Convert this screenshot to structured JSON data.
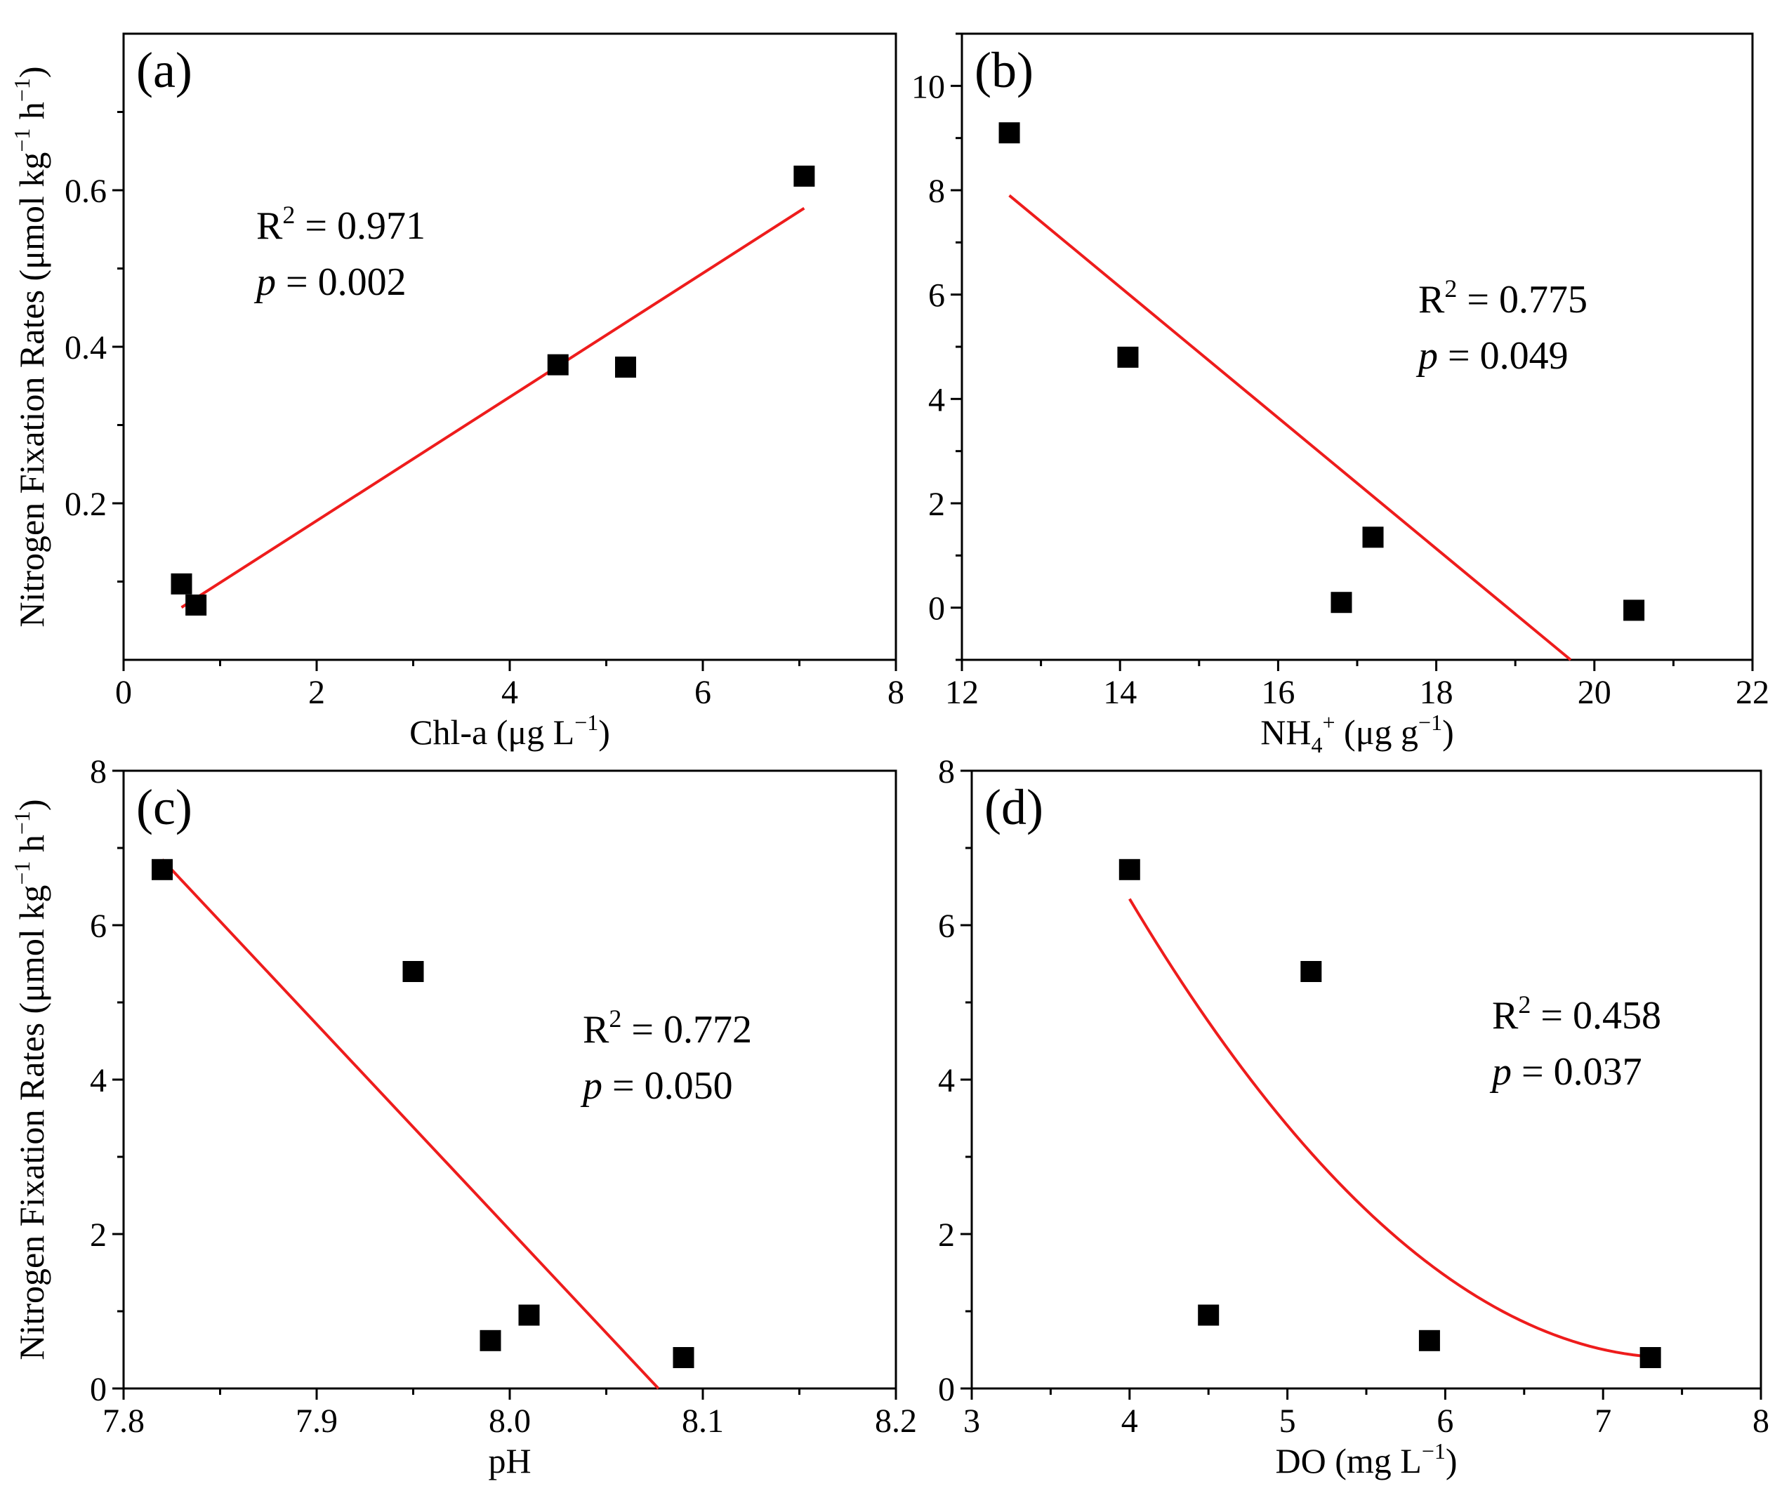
{
  "figure": {
    "y_axis_label": "Nitrogen Fixation Rates (μmol kg⁻¹ h⁻¹)",
    "marker_color": "#000000",
    "fit_color": "#ee1c1c"
  },
  "chart_data": [
    {
      "panel": "(a)",
      "type": "scatter",
      "xlabel": "Chl-a (μg L⁻¹)",
      "ylabel": "Nitrogen Fixation Rates (μmol kg⁻¹ h⁻¹)",
      "xlim": [
        0,
        8
      ],
      "ylim": [
        0,
        0.8
      ],
      "xticks": [
        0,
        2,
        4,
        6,
        8
      ],
      "xtick_labels": [
        "0",
        "2",
        "4",
        "6",
        "8"
      ],
      "yticks": [
        0.2,
        0.4,
        0.6
      ],
      "ytick_labels": [
        "0.2",
        "0.4",
        "0.6"
      ],
      "x": [
        0.6,
        0.75,
        4.5,
        5.2,
        7.05
      ],
      "y": [
        0.097,
        0.07,
        0.377,
        0.374,
        0.618
      ],
      "fit": {
        "kind": "linear",
        "x_range": [
          0.6,
          7.05
        ],
        "endpoints": [
          0.067,
          0.577
        ]
      },
      "r2_label": "R² = 0.971",
      "p_label": "p = 0.002"
    },
    {
      "panel": "(b)",
      "type": "scatter",
      "xlabel": "NH₄⁺ (μg g⁻¹)",
      "ylabel": "",
      "xlim": [
        12,
        22
      ],
      "ylim": [
        -1,
        11
      ],
      "xticks": [
        12,
        14,
        16,
        18,
        20,
        22
      ],
      "xtick_labels": [
        "12",
        "14",
        "16",
        "18",
        "20",
        "22"
      ],
      "yticks": [
        0,
        2,
        4,
        6,
        8,
        10
      ],
      "ytick_labels": [
        "0",
        "2",
        "4",
        "6",
        "8",
        "10"
      ],
      "x": [
        12.6,
        14.1,
        16.8,
        17.2,
        20.5
      ],
      "y": [
        9.1,
        4.8,
        0.1,
        1.35,
        -0.05
      ],
      "fit": {
        "kind": "linear",
        "x_range": [
          12.6,
          19.7
        ],
        "endpoints": [
          7.9,
          -1.0
        ]
      },
      "r2_label": "R² = 0.775",
      "p_label": "p = 0.049"
    },
    {
      "panel": "(c)",
      "type": "scatter",
      "xlabel": "pH",
      "ylabel": "Nitrogen Fixation Rates (μmol kg⁻¹ h⁻¹)",
      "xlim": [
        7.8,
        8.2
      ],
      "ylim": [
        0,
        8
      ],
      "xticks": [
        7.8,
        7.9,
        8.0,
        8.1,
        8.2
      ],
      "xtick_labels": [
        "7.8",
        "7.9",
        "8.0",
        "8.1",
        "8.2"
      ],
      "yticks": [
        0,
        2,
        4,
        6,
        8
      ],
      "ytick_labels": [
        "0",
        "2",
        "4",
        "6",
        "8"
      ],
      "x": [
        7.82,
        7.95,
        7.99,
        8.01,
        8.09
      ],
      "y": [
        6.72,
        5.4,
        0.62,
        0.95,
        0.4
      ],
      "fit": {
        "kind": "linear",
        "x_range": [
          7.82,
          8.077
        ],
        "endpoints": [
          6.85,
          0.0
        ]
      },
      "r2_label": "R² = 0.772",
      "p_label": "p = 0.050"
    },
    {
      "panel": "(d)",
      "type": "scatter",
      "xlabel": "DO (mg L⁻¹)",
      "ylabel": "",
      "xlim": [
        3,
        8
      ],
      "ylim": [
        0,
        8
      ],
      "xticks": [
        3,
        4,
        5,
        6,
        7,
        8
      ],
      "xtick_labels": [
        "3",
        "4",
        "5",
        "6",
        "7",
        "8"
      ],
      "yticks": [
        0,
        2,
        4,
        6,
        8
      ],
      "ytick_labels": [
        "0",
        "2",
        "4",
        "6",
        "8"
      ],
      "x": [
        4.0,
        4.5,
        5.15,
        5.9,
        7.3
      ],
      "y": [
        6.72,
        0.95,
        5.4,
        0.62,
        0.4
      ],
      "fit": {
        "kind": "quadratic",
        "x_range": [
          4.0,
          7.3
        ],
        "coefficients": [
          0.4946,
          -7.3858,
          27.97
        ]
      },
      "r2_label": "R² = 0.458",
      "p_label": "p = 0.037"
    }
  ]
}
